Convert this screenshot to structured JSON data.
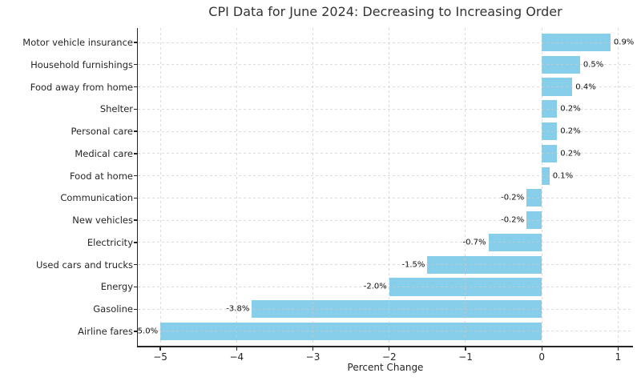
{
  "chart_data": {
    "type": "bar",
    "orientation": "horizontal",
    "title": "CPI Data for June 2024: Decreasing to Increasing Order",
    "xlabel": "Percent Change",
    "ylabel": "",
    "categories": [
      "Motor vehicle insurance",
      "Household furnishings",
      "Food away from home",
      "Shelter",
      "Personal care",
      "Medical care",
      "Food at home",
      "Communication",
      "New vehicles",
      "Electricity",
      "Used cars and trucks",
      "Energy",
      "Gasoline",
      "Airline fares"
    ],
    "values": [
      0.9,
      0.5,
      0.4,
      0.2,
      0.2,
      0.2,
      0.1,
      -0.2,
      -0.2,
      -0.7,
      -1.5,
      -2.0,
      -3.8,
      -5.0
    ],
    "value_labels": [
      "0.9%",
      "0.5%",
      "0.4%",
      "0.2%",
      "0.2%",
      "0.2%",
      "0.1%",
      "-0.2%",
      "-0.2%",
      "-0.7%",
      "-1.5%",
      "-2.0%",
      "-3.8%",
      "-5.0%"
    ],
    "xlim": [
      -5.295,
      1.195
    ],
    "xticks": [
      -5,
      -4,
      -3,
      -2,
      -1,
      0,
      1
    ],
    "xtick_labels": [
      "−5",
      "−4",
      "−3",
      "−2",
      "−1",
      "0",
      "1"
    ],
    "grid": true,
    "grid_style": "dashed",
    "legend": null,
    "bar_color": "#87CEEB",
    "grid_color": "#c9c9c9",
    "axis_color": "#262626",
    "text_color": "#262626",
    "background": "#ffffff"
  }
}
